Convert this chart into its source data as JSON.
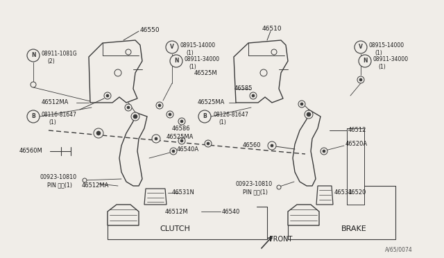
{
  "bg_color": "#f0ede8",
  "line_color": "#3a3a3a",
  "text_color": "#1a1a1a",
  "footer": "A/65/0074",
  "figsize": [
    6.4,
    3.72
  ],
  "dpi": 100,
  "xlim": [
    0,
    640
  ],
  "ylim": [
    0,
    372
  ]
}
